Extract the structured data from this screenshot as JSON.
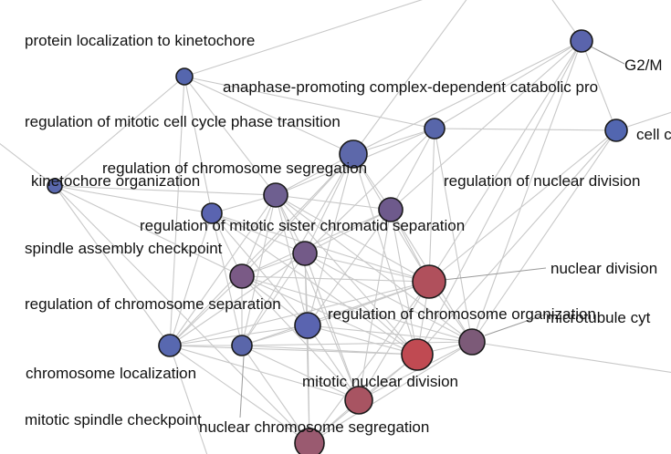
{
  "graph": {
    "nodes": [
      {
        "id": "n_g2m",
        "label": "G2/M",
        "color": "#5a64ac"
      },
      {
        "id": "n_cell",
        "label": "cell c",
        "color": "#5266b0"
      },
      {
        "id": "n_plk",
        "label": "protein localization to kinetochore",
        "color": "#5566ae"
      },
      {
        "id": "n_apc",
        "label": "anaphase-promoting complex-dependent catabolic pro",
        "color": "#5866aa"
      },
      {
        "id": "n_rmcc",
        "label": "regulation of mitotic cell cycle phase transition",
        "color": "#5d68aa"
      },
      {
        "id": "n_kin",
        "label": "kinetochore organization",
        "color": "#5a68ae"
      },
      {
        "id": "n_rcs",
        "label": "regulation of chromosome segregation",
        "color": "#6e5f90"
      },
      {
        "id": "n_rnd",
        "label": "regulation of nuclear division",
        "color": "#6e5a8c"
      },
      {
        "id": "n_rmsc",
        "label": "regulation of mitotic sister chromatid separation",
        "color": "#735a88"
      },
      {
        "id": "n_sac",
        "label": "spindle assembly checkpoint",
        "color": "#7a5a86"
      },
      {
        "id": "n_nd",
        "label": "nuclear division",
        "color": "#b0505c"
      },
      {
        "id": "n_rcsep",
        "label": "regulation of chromosome separation",
        "color": "#5a64b0"
      },
      {
        "id": "n_rco",
        "label": "regulation of chromosome organization",
        "color": "#7c5a78"
      },
      {
        "id": "n_mcyt",
        "label": "microtubule cyt",
        "color": "#8a5a70"
      },
      {
        "id": "n_cl",
        "label": "chromosome localization",
        "color": "#5868b0"
      },
      {
        "id": "n_msc",
        "label": "mitotic spindle checkpoint",
        "color": "#5a66aa"
      },
      {
        "id": "n_mnd",
        "label": "mitotic nuclear division",
        "color": "#c04a52"
      },
      {
        "id": "n_ncs",
        "label": "nuclear chromosome segregation",
        "color": "#a85462"
      },
      {
        "id": "n_ncs2",
        "label": "",
        "color": "#9a5a70"
      },
      {
        "id": "n_rmsc2",
        "label": "",
        "color": "#5a64b0"
      },
      {
        "id": "n_kin2",
        "label": "",
        "color": "#5c66ac"
      }
    ],
    "edge_color": "#c8c8c8",
    "node_stroke": "#1a1a1a"
  }
}
